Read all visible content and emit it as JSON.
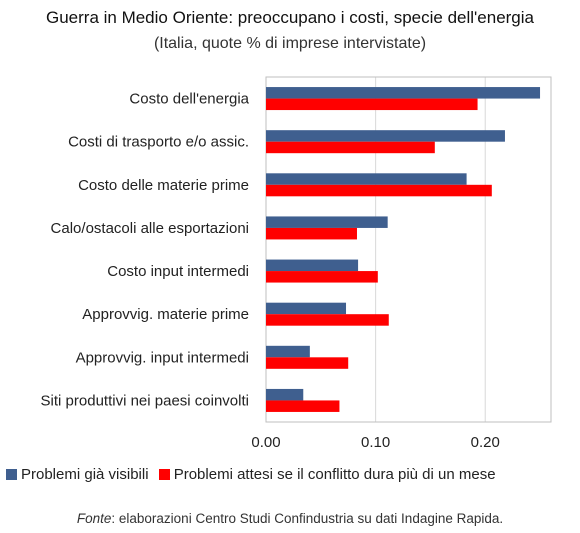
{
  "chart_data": {
    "type": "bar",
    "orientation": "horizontal",
    "title": "Guerra in Medio Oriente: preoccupano i costi, specie dell'energia",
    "subtitle": "(Italia, quote % di imprese intervistate)",
    "categories": [
      "Costo dell'energia",
      "Costi di trasporto e/o assic.",
      "Costo delle materie prime",
      "Calo/ostacoli alle esportazioni",
      "Costo input intermedi",
      "Approvvig. materie prime",
      "Approvvig. input intermedi",
      "Siti produttivi nei paesi coinvolti"
    ],
    "series": [
      {
        "name": "Problemi già visibili",
        "color": "#3f5f8f",
        "values": [
          0.25,
          0.218,
          0.183,
          0.111,
          0.084,
          0.073,
          0.04,
          0.034
        ]
      },
      {
        "name": "Problemi attesi se il conflitto dura più di un mese",
        "color": "#ff0000",
        "values": [
          0.193,
          0.154,
          0.206,
          0.083,
          0.102,
          0.112,
          0.075,
          0.067
        ]
      }
    ],
    "xlim": [
      0,
      0.26
    ],
    "xticks": [
      "0.00",
      "0.10",
      "0.20"
    ],
    "xtick_values": [
      0,
      0.1,
      0.2
    ],
    "grid": "vertical",
    "legend_position": "bottom"
  },
  "source": {
    "label": "Fonte",
    "text": ": elaborazioni Centro Studi Confindustria su dati Indagine Rapida."
  }
}
